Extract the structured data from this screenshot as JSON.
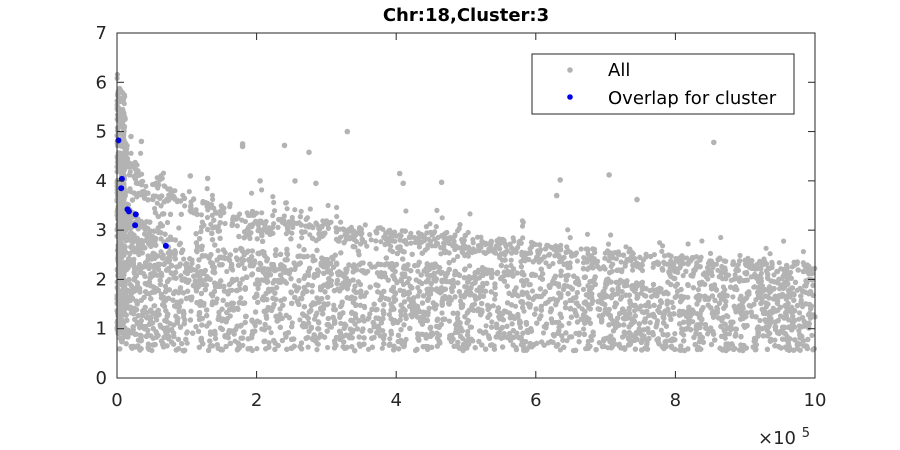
{
  "chart_data": {
    "type": "scatter",
    "title": "Chr:18,Cluster:3",
    "xlabel": "",
    "ylabel": "",
    "x_exponent_label": "×10",
    "x_exponent_power": "5",
    "xlim": [
      0,
      10
    ],
    "ylim": [
      0,
      7
    ],
    "x_ticks": [
      0,
      2,
      4,
      6,
      8,
      10
    ],
    "y_ticks": [
      0,
      1,
      2,
      3,
      4,
      5,
      6,
      7
    ],
    "x_tick_labels": [
      "0",
      "2",
      "4",
      "6",
      "8",
      "10"
    ],
    "y_tick_labels": [
      "0",
      "1",
      "2",
      "3",
      "4",
      "5",
      "6",
      "7"
    ],
    "grid": false,
    "legend_position": "top-right",
    "series": [
      {
        "name": "All",
        "color": "#b3b3b3",
        "marker": "dot",
        "description_of_density": "dense cloud of many thousands of points",
        "upper_envelope": [
          [
            0.0,
            6.1
          ],
          [
            0.05,
            5.6
          ],
          [
            0.15,
            4.7
          ],
          [
            0.3,
            4.3
          ],
          [
            0.5,
            4.0
          ],
          [
            1.0,
            3.7
          ],
          [
            1.5,
            3.5
          ],
          [
            2.0,
            3.4
          ],
          [
            3.0,
            3.2
          ],
          [
            4.0,
            3.0
          ],
          [
            5.0,
            2.9
          ],
          [
            6.0,
            2.75
          ],
          [
            7.0,
            2.6
          ],
          [
            8.0,
            2.5
          ],
          [
            9.0,
            2.4
          ],
          [
            10.0,
            2.3
          ]
        ],
        "lower_bound": 0.55,
        "outliers": [
          {
            "x": 0.2,
            "y": 4.9
          },
          {
            "x": 0.35,
            "y": 4.8
          },
          {
            "x": 1.8,
            "y": 4.75
          },
          {
            "x": 2.4,
            "y": 4.72
          },
          {
            "x": 2.75,
            "y": 4.58
          },
          {
            "x": 3.3,
            "y": 5.0
          },
          {
            "x": 2.05,
            "y": 4.0
          },
          {
            "x": 2.55,
            "y": 4.0
          },
          {
            "x": 2.85,
            "y": 3.95
          },
          {
            "x": 4.05,
            "y": 4.15
          },
          {
            "x": 4.1,
            "y": 3.95
          },
          {
            "x": 4.65,
            "y": 3.97
          },
          {
            "x": 6.35,
            "y": 4.02
          },
          {
            "x": 7.05,
            "y": 4.12
          },
          {
            "x": 7.45,
            "y": 3.62
          },
          {
            "x": 8.55,
            "y": 4.78
          },
          {
            "x": 6.3,
            "y": 3.7
          },
          {
            "x": 1.8,
            "y": 4.7
          },
          {
            "x": 1.05,
            "y": 4.1
          },
          {
            "x": 1.3,
            "y": 4.05
          }
        ]
      },
      {
        "name": "Overlap for cluster",
        "color": "#0000e6",
        "marker": "dot",
        "points": [
          {
            "x": 0.02,
            "y": 4.82
          },
          {
            "x": 0.07,
            "y": 4.04
          },
          {
            "x": 0.06,
            "y": 3.85
          },
          {
            "x": 0.15,
            "y": 3.42
          },
          {
            "x": 0.17,
            "y": 3.38
          },
          {
            "x": 0.27,
            "y": 3.32
          },
          {
            "x": 0.26,
            "y": 3.1
          },
          {
            "x": 0.7,
            "y": 2.68
          }
        ]
      }
    ]
  }
}
